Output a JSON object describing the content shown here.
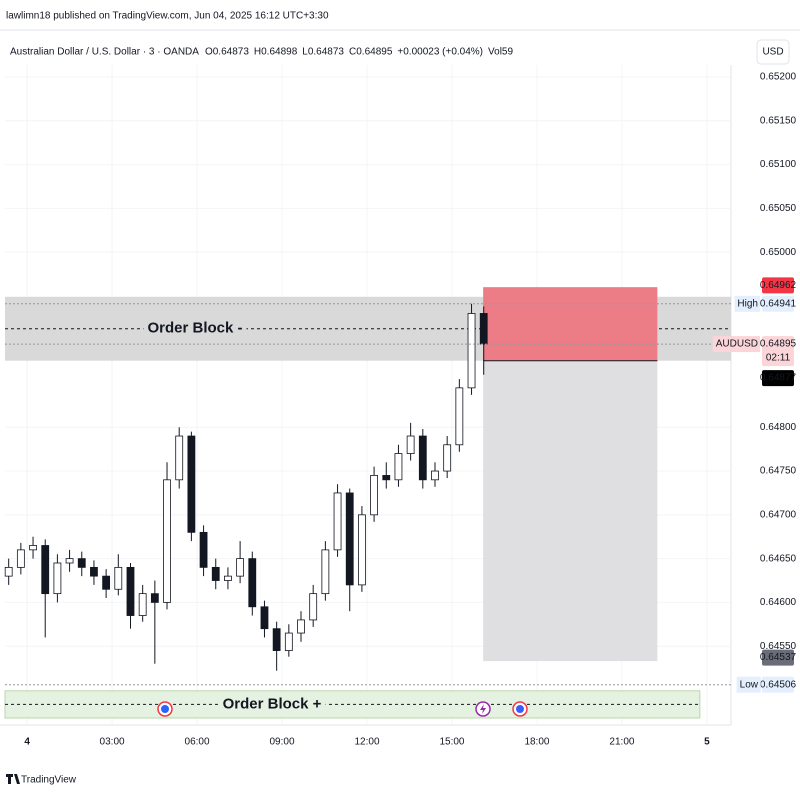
{
  "header": {
    "published": "lawlimn18 published on TradingView.com, Jun 04, 2025 16:12 UTC+3:30",
    "symbol": "Australian Dollar / U.S. Dollar · 3 · OANDA",
    "ohlc": [
      {
        "key": "O",
        "value": 0.64873
      },
      {
        "key": "H",
        "value": 0.64898
      },
      {
        "key": "L",
        "value": 0.64873
      },
      {
        "key": "C",
        "value": 0.64895
      }
    ],
    "change": "+0.00023 (+0.04%)",
    "volume": {
      "key": "Vol",
      "value": 59
    },
    "currency": "USD"
  },
  "chart_data": {
    "type": "candlestick",
    "x": [
      -0.65,
      -0.22,
      0.21,
      0.64,
      1.07,
      1.5,
      1.93,
      2.36,
      2.79,
      3.22,
      3.65,
      4.08,
      4.51,
      4.94,
      5.37,
      5.8,
      6.23,
      6.66,
      7.09,
      7.52,
      7.95,
      8.38,
      8.81,
      9.24,
      9.67,
      10.1,
      10.53,
      10.96,
      11.39,
      11.82,
      12.25,
      12.68,
      13.11,
      13.54,
      13.97,
      14.4,
      14.83,
      15.26,
      15.69,
      16.12
    ],
    "open": [
      0.6463,
      0.6464,
      0.6466,
      0.64665,
      0.6461,
      0.64645,
      0.6465,
      0.6464,
      0.6463,
      0.64615,
      0.6464,
      0.64585,
      0.6461,
      0.646,
      0.6474,
      0.6479,
      0.6468,
      0.6464,
      0.64625,
      0.6463,
      0.6465,
      0.64595,
      0.6457,
      0.64545,
      0.64565,
      0.6458,
      0.6461,
      0.6466,
      0.64725,
      0.6462,
      0.647,
      0.64745,
      0.6474,
      0.6477,
      0.6479,
      0.6474,
      0.6475,
      0.6478,
      0.64845,
      0.6493
    ],
    "high": [
      0.6465,
      0.64668,
      0.64675,
      0.64672,
      0.64655,
      0.6466,
      0.64658,
      0.64648,
      0.64638,
      0.64655,
      0.64645,
      0.6462,
      0.64625,
      0.6476,
      0.648,
      0.64795,
      0.64688,
      0.6465,
      0.6464,
      0.6467,
      0.64658,
      0.64602,
      0.64578,
      0.64575,
      0.6459,
      0.6462,
      0.6467,
      0.64735,
      0.6473,
      0.6471,
      0.64755,
      0.6476,
      0.6478,
      0.64805,
      0.64798,
      0.6476,
      0.6479,
      0.64855,
      0.64941,
      0.64938
    ],
    "low": [
      0.6462,
      0.64632,
      0.6465,
      0.6456,
      0.646,
      0.64635,
      0.6463,
      0.6462,
      0.64605,
      0.64608,
      0.6457,
      0.64578,
      0.6453,
      0.64592,
      0.6473,
      0.6467,
      0.6463,
      0.64615,
      0.64615,
      0.64622,
      0.64585,
      0.6456,
      0.64522,
      0.64538,
      0.64555,
      0.64572,
      0.64602,
      0.64652,
      0.6459,
      0.64612,
      0.64692,
      0.6473,
      0.64732,
      0.64762,
      0.6473,
      0.64732,
      0.64742,
      0.64772,
      0.64837,
      0.6486
    ],
    "close": [
      0.6464,
      0.6466,
      0.64665,
      0.6461,
      0.64645,
      0.6465,
      0.6464,
      0.6463,
      0.64615,
      0.6464,
      0.64585,
      0.6461,
      0.646,
      0.6474,
      0.6479,
      0.6468,
      0.6464,
      0.64625,
      0.6463,
      0.6465,
      0.64595,
      0.6457,
      0.64545,
      0.64565,
      0.6458,
      0.6461,
      0.6466,
      0.64725,
      0.6462,
      0.647,
      0.64745,
      0.6474,
      0.6477,
      0.6479,
      0.6474,
      0.6475,
      0.6478,
      0.64845,
      0.6493,
      0.64895
    ],
    "up_color": "#ffffff",
    "down_color": "#131722",
    "wick_color": "#131722",
    "xlim": [
      -0.78,
      24.85
    ],
    "xticks": [
      {
        "value": 0,
        "label": "4"
      },
      {
        "value": 3,
        "label": "03:00"
      },
      {
        "value": 6,
        "label": "06:00"
      },
      {
        "value": 9,
        "label": "09:00"
      },
      {
        "value": 12,
        "label": "12:00"
      },
      {
        "value": 15,
        "label": "15:00"
      },
      {
        "value": 18,
        "label": "18:00"
      },
      {
        "value": 21,
        "label": "21:00"
      },
      {
        "value": 24,
        "label": "5"
      }
    ],
    "ylim": [
      0.6446,
      0.652
    ],
    "yticks": [
      {
        "value": 0.652,
        "label": "0.65200"
      },
      {
        "value": 0.6515,
        "label": "0.65150"
      },
      {
        "value": 0.651,
        "label": "0.65100"
      },
      {
        "value": 0.6505,
        "label": "0.65050"
      },
      {
        "value": 0.65,
        "label": "0.65000"
      },
      {
        "value": 0.648,
        "label": "0.64800"
      },
      {
        "value": 0.6475,
        "label": "0.64750"
      },
      {
        "value": 0.647,
        "label": "0.64700"
      },
      {
        "value": 0.6465,
        "label": "0.64650"
      },
      {
        "value": 0.646,
        "label": "0.64600"
      },
      {
        "value": 0.6455,
        "label": "0.64550"
      }
    ],
    "zones": [
      {
        "label": "Order Block -",
        "top": 0.64949,
        "bottom": 0.64876,
        "start": -0.78,
        "end": 24.85,
        "color": "#d9d9d9"
      },
      {
        "top": 0.6496,
        "bottom": 0.64876,
        "start": 16.1,
        "end": 22.25,
        "color": "#ec7c86"
      },
      {
        "top": 0.64876,
        "bottom": 0.64533,
        "start": 16.1,
        "end": 22.25,
        "color": "#dfdfe1"
      },
      {
        "label": "Order Block +",
        "top": 0.64499,
        "bottom": 0.64468,
        "start": -0.78,
        "end": 23.75,
        "color": "#e6f2e1"
      }
    ],
    "price_markers": [
      {
        "value": 0.64962,
        "color": "#f23645",
        "text_color": "#ffffff"
      },
      {
        "tag": "High",
        "value": 0.64941,
        "color": "#e3effd",
        "text_color": "#131722"
      },
      {
        "tag": "AUDUSD",
        "value": 0.64895,
        "countdown": "02:11",
        "color": "#fbd5d8",
        "text_color": "#131722"
      },
      {
        "value": 0.64877,
        "color": "#000000",
        "text_color": "#ffffff"
      },
      {
        "value": 0.64537,
        "color": "#6a6d78",
        "text_color": "#ffffff"
      },
      {
        "tag": "Low",
        "value": 0.64506,
        "color": "#e3effd",
        "text_color": "#131722"
      }
    ]
  },
  "footer": {
    "brand": "TradingView"
  }
}
